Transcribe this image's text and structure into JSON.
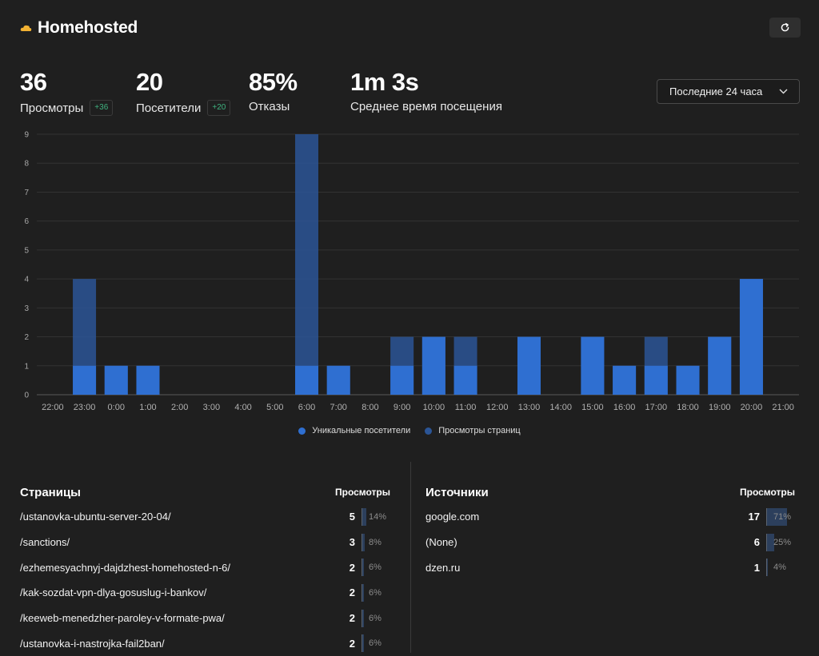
{
  "header": {
    "title": "Homehosted",
    "refresh_icon": "refresh-icon",
    "logo_icon": "cloud-icon"
  },
  "stats": [
    {
      "value": "36",
      "label": "Просмотры",
      "badge": "+36"
    },
    {
      "value": "20",
      "label": "Посетители",
      "badge": "+20"
    },
    {
      "value": "85%",
      "label": "Отказы",
      "badge": null
    },
    {
      "value": "1m 3s",
      "label": "Среднее время посещения",
      "badge": null
    }
  ],
  "range_select": {
    "value": "Последние 24 часа"
  },
  "chart_data": {
    "type": "bar",
    "categories": [
      "22:00",
      "23:00",
      "0:00",
      "1:00",
      "2:00",
      "3:00",
      "4:00",
      "5:00",
      "6:00",
      "7:00",
      "8:00",
      "9:00",
      "10:00",
      "11:00",
      "12:00",
      "13:00",
      "14:00",
      "15:00",
      "16:00",
      "17:00",
      "18:00",
      "19:00",
      "20:00",
      "21:00"
    ],
    "series": [
      {
        "name": "Уникальные посетители",
        "values": [
          0,
          1,
          1,
          1,
          0,
          0,
          0,
          0,
          1,
          1,
          0,
          1,
          2,
          1,
          0,
          2,
          0,
          2,
          1,
          1,
          1,
          2,
          4,
          0
        ],
        "color": "#2f6fd1"
      },
      {
        "name": "Просмотры страниц",
        "values": [
          0,
          4,
          1,
          1,
          0,
          0,
          0,
          0,
          9,
          1,
          0,
          2,
          2,
          2,
          0,
          2,
          0,
          2,
          1,
          2,
          1,
          2,
          4,
          0
        ],
        "color": "#2b5596"
      }
    ],
    "y_ticks": [
      "0",
      "1",
      "2",
      "3",
      "4",
      "5",
      "6",
      "7",
      "8",
      "9"
    ],
    "ylim": [
      0,
      9
    ],
    "grid": true,
    "legend_position": "bottom-center"
  },
  "pages": {
    "title": "Страницы",
    "column": "Просмотры",
    "rows": [
      {
        "label": "/ustanovka-ubuntu-server-20-04/",
        "count": "5",
        "pct": "14%",
        "frac": 0.14
      },
      {
        "label": "/sanctions/",
        "count": "3",
        "pct": "8%",
        "frac": 0.08
      },
      {
        "label": "/ezhemesyachnyj-dajdzhest-homehosted-n-6/",
        "count": "2",
        "pct": "6%",
        "frac": 0.06
      },
      {
        "label": "/kak-sozdat-vpn-dlya-gosuslug-i-bankov/",
        "count": "2",
        "pct": "6%",
        "frac": 0.06
      },
      {
        "label": "/keeweb-menedzher-paroley-v-formate-pwa/",
        "count": "2",
        "pct": "6%",
        "frac": 0.06
      },
      {
        "label": "/ustanovka-i-nastrojka-fail2ban/",
        "count": "2",
        "pct": "6%",
        "frac": 0.06
      }
    ]
  },
  "sources": {
    "title": "Источники",
    "column": "Просмотры",
    "rows": [
      {
        "label": "google.com",
        "count": "17",
        "pct": "71%",
        "frac": 0.71
      },
      {
        "label": "(None)",
        "count": "6",
        "pct": "25%",
        "frac": 0.25
      },
      {
        "label": "dzen.ru",
        "count": "1",
        "pct": "4%",
        "frac": 0.04
      }
    ]
  }
}
